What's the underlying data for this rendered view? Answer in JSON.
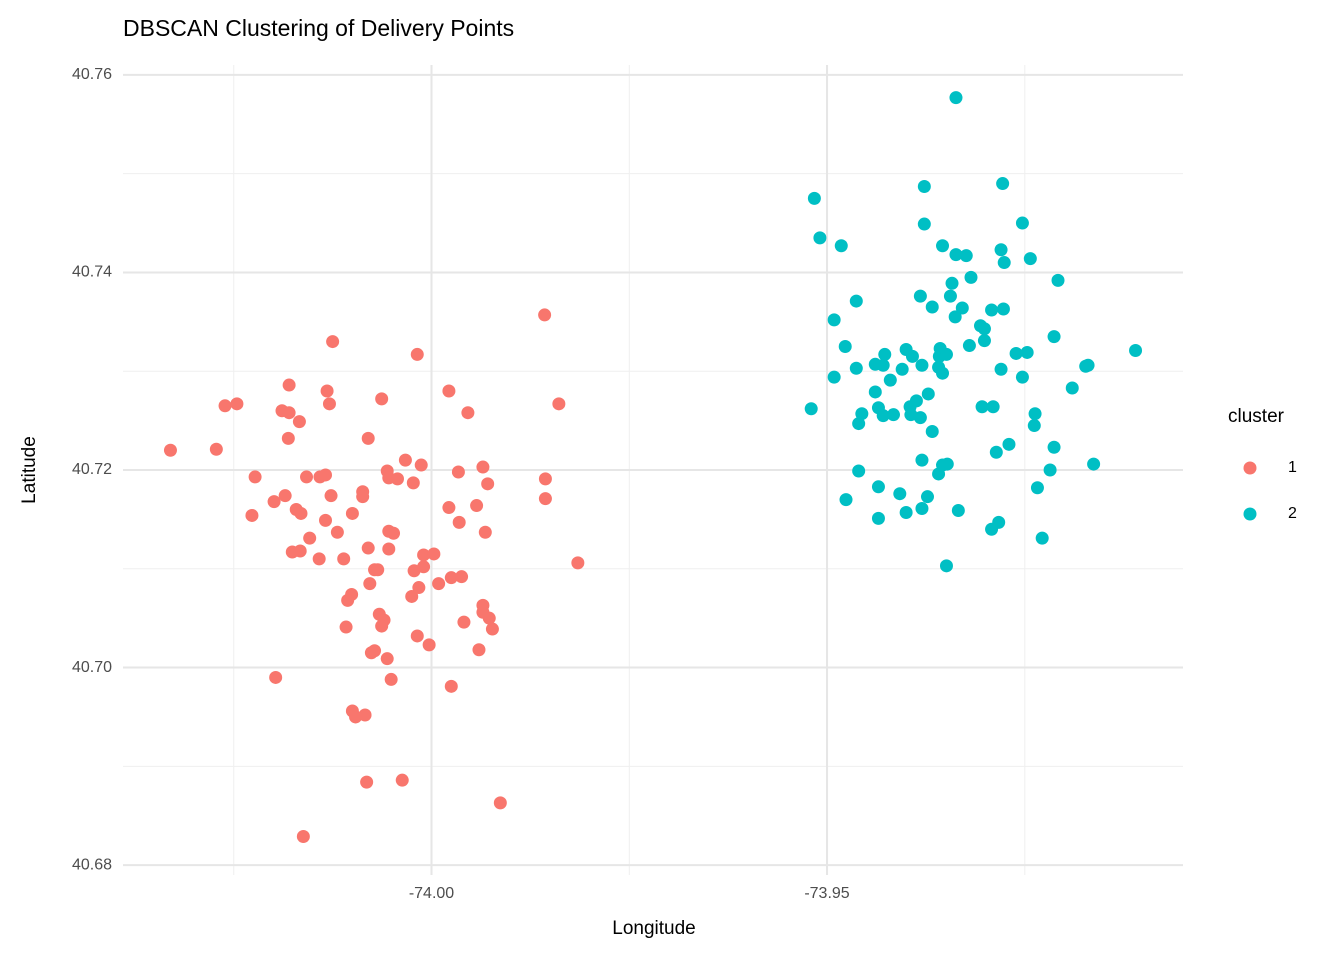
{
  "chart_data": {
    "type": "scatter",
    "title": "DBSCAN Clustering of Delivery Points",
    "x_label": "Longitude",
    "y_label": "Latitude",
    "legend_title": "cluster",
    "legend_position": "right",
    "grid": true,
    "xlim": [
      -74.039,
      -73.905
    ],
    "ylim": [
      40.679,
      40.761
    ],
    "xticks": [
      {
        "value": -74.0,
        "label": "-74.00"
      },
      {
        "value": -73.95,
        "label": "-73.95"
      }
    ],
    "yticks": [
      40.68,
      {
        "value": 40.7,
        "label": "40.70"
      },
      40.72,
      40.74,
      40.76
    ],
    "x_minor_grid": [
      -74.025,
      -73.975,
      -73.925
    ],
    "y_minor_grid": [
      40.69,
      40.71,
      40.73,
      40.75
    ],
    "series": [
      {
        "name": "1",
        "color": "#F8766D",
        "x": [
          -74.033,
          -74.0272,
          -74.0261,
          -74.0246,
          -74.0223,
          -74.0227,
          -74.0199,
          -74.0197,
          -74.018,
          -74.0189,
          -74.018,
          -74.0167,
          -74.0181,
          -74.0185,
          -74.0171,
          -74.0165,
          -74.0176,
          -74.0166,
          -74.0154,
          -74.0158,
          -74.0141,
          -74.0134,
          -74.0125,
          -74.0132,
          -74.0129,
          -74.0127,
          -74.0134,
          -74.0142,
          -74.0119,
          -74.0111,
          -74.01,
          -74.0087,
          -74.0087,
          -74.008,
          -74.0063,
          -74.008,
          -74.0072,
          -74.0068,
          -74.0078,
          -74.0101,
          -74.0106,
          -74.0108,
          -74.0066,
          -74.006,
          -74.0063,
          -74.0076,
          -74.0072,
          -74.0056,
          -74.0051,
          -74.01,
          -74.0096,
          -74.0084,
          -74.0082,
          -74.0037,
          -74.0162,
          -73.9913,
          -74.0056,
          -74.0054,
          -74.0043,
          -74.0033,
          -74.0023,
          -74.0013,
          -74.0054,
          -74.0048,
          -74.0054,
          -74.001,
          -73.9997,
          -74.0022,
          -74.001,
          -74.0025,
          -74.0016,
          -73.9991,
          -74.0018,
          -74.0003,
          -74.0018,
          -73.9978,
          -73.9954,
          -73.9966,
          -73.9935,
          -73.9929,
          -73.9978,
          -73.9943,
          -73.9965,
          -73.9932,
          -73.9975,
          -73.9962,
          -73.9935,
          -73.9935,
          -73.9927,
          -73.9923,
          -73.9959,
          -73.994,
          -73.9975,
          -73.9857,
          -73.9839,
          -73.9856,
          -73.9856,
          -73.9815
        ],
        "values": [
          40.722,
          40.7221,
          40.7265,
          40.7267,
          40.7193,
          40.7154,
          40.7168,
          40.699,
          40.7286,
          40.726,
          40.7258,
          40.7249,
          40.7232,
          40.7174,
          40.716,
          40.7156,
          40.7117,
          40.7118,
          40.7131,
          40.7193,
          40.7193,
          40.7195,
          40.733,
          40.728,
          40.7267,
          40.7174,
          40.7149,
          40.711,
          40.7137,
          40.711,
          40.7156,
          40.7178,
          40.7173,
          40.7232,
          40.7272,
          40.7121,
          40.7099,
          40.7099,
          40.7085,
          40.7074,
          40.7068,
          40.7041,
          40.7054,
          40.7048,
          40.7042,
          40.7015,
          40.7017,
          40.7009,
          40.6988,
          40.6956,
          40.695,
          40.6952,
          40.6884,
          40.6886,
          40.6829,
          40.6863,
          40.7199,
          40.7192,
          40.7191,
          40.721,
          40.7187,
          40.7205,
          40.7138,
          40.7136,
          40.712,
          40.7114,
          40.7115,
          40.7098,
          40.7102,
          40.7072,
          40.7081,
          40.7085,
          40.7032,
          40.7023,
          40.7317,
          40.728,
          40.7258,
          40.7198,
          40.7203,
          40.7186,
          40.7162,
          40.7164,
          40.7147,
          40.7137,
          40.7091,
          40.7092,
          40.7063,
          40.7056,
          40.705,
          40.7039,
          40.7046,
          40.7018,
          40.6981,
          40.7357,
          40.7267,
          40.7191,
          40.7171,
          40.7106
        ]
      },
      {
        "name": "2",
        "color": "#00BFC4",
        "x": [
          -73.9516,
          -73.9509,
          -73.9482,
          -73.952,
          -73.9491,
          -73.9491,
          -73.9477,
          -73.9463,
          -73.9463,
          -73.946,
          -73.9476,
          -73.9456,
          -73.946,
          -73.9435,
          -73.9435,
          -73.9439,
          -73.9427,
          -73.9429,
          -73.942,
          -73.9439,
          -73.9435,
          -73.9429,
          -73.9416,
          -73.9405,
          -73.94,
          -73.9392,
          -73.9408,
          -73.94,
          -73.9395,
          -73.9394,
          -73.9387,
          -73.9382,
          -73.9382,
          -73.938,
          -73.9372,
          -73.9367,
          -73.938,
          -73.938,
          -73.9373,
          -73.9377,
          -73.9377,
          -73.9367,
          -73.9357,
          -73.9358,
          -73.9349,
          -73.9359,
          -73.9354,
          -73.9359,
          -73.9354,
          -73.9348,
          -73.9349,
          -73.9354,
          -73.9337,
          -73.9337,
          -73.9324,
          -73.9342,
          -73.9344,
          -73.9329,
          -73.9338,
          -73.9318,
          -73.932,
          -73.9306,
          -73.9301,
          -73.9301,
          -73.9334,
          -73.9304,
          -73.929,
          -73.9292,
          -73.9277,
          -73.9286,
          -73.927,
          -73.9292,
          -73.9283,
          -73.928,
          -73.9278,
          -73.928,
          -73.9276,
          -73.9261,
          -73.9247,
          -73.9253,
          -73.9243,
          -73.9253,
          -73.9237,
          -73.9238,
          -73.9234,
          -73.9228,
          -73.9218,
          -73.9213,
          -73.9213,
          -73.9208,
          -73.919,
          -73.9173,
          -73.917,
          -73.9163,
          -73.911
        ],
        "values": [
          40.7475,
          40.7435,
          40.7427,
          40.7262,
          40.7294,
          40.7352,
          40.7325,
          40.7371,
          40.7303,
          40.7199,
          40.717,
          40.7257,
          40.7247,
          40.7183,
          40.7151,
          40.7307,
          40.7317,
          40.7306,
          40.7291,
          40.7279,
          40.7263,
          40.7255,
          40.7256,
          40.7302,
          40.7322,
          40.7315,
          40.7176,
          40.7157,
          40.7264,
          40.7256,
          40.727,
          40.7253,
          40.7376,
          40.7306,
          40.7277,
          40.7239,
          40.721,
          40.7161,
          40.7173,
          40.7487,
          40.7449,
          40.7365,
          40.7323,
          40.7315,
          40.7317,
          40.7304,
          40.7298,
          40.7196,
          40.7205,
          40.7206,
          40.7103,
          40.7427,
          40.7577,
          40.7418,
          40.7417,
          40.7389,
          40.7376,
          40.7364,
          40.7355,
          40.7395,
          40.7326,
          40.7346,
          40.7343,
          40.7331,
          40.7159,
          40.7264,
          40.7264,
          40.7362,
          40.7363,
          40.7218,
          40.7226,
          40.714,
          40.7147,
          40.7302,
          40.749,
          40.7423,
          40.741,
          40.7318,
          40.7319,
          40.745,
          40.7414,
          40.7294,
          40.7257,
          40.7245,
          40.7182,
          40.7131,
          40.72,
          40.7223,
          40.7335,
          40.7392,
          40.7283,
          40.7305,
          40.7306,
          40.7206,
          40.7321
        ]
      }
    ]
  }
}
